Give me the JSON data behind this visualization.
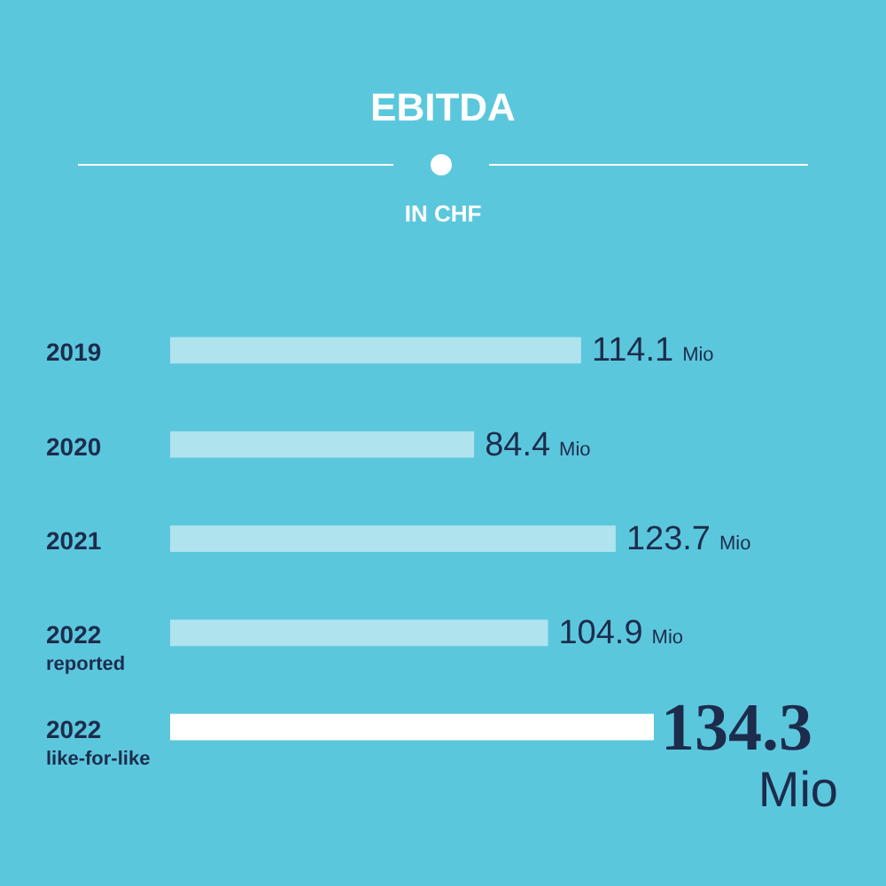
{
  "chart_data": {
    "type": "bar",
    "orientation": "horizontal",
    "title": "EBITDA",
    "subtitle": "IN CHF",
    "categories": [
      "2019",
      "2020",
      "2021",
      "2022 reported",
      "2022 like-for-like"
    ],
    "values": [
      114.1,
      84.4,
      123.7,
      104.9,
      134.3
    ],
    "colors": [
      "#afe3ee",
      "#afe3ee",
      "#afe3ee",
      "#afe3ee",
      "#ffffff"
    ],
    "value_labels": [
      "114.1 Mio",
      "84.4 Mio",
      "123.7 Mio",
      "104.9 Mio",
      "134.3 Mio"
    ]
  }
}
